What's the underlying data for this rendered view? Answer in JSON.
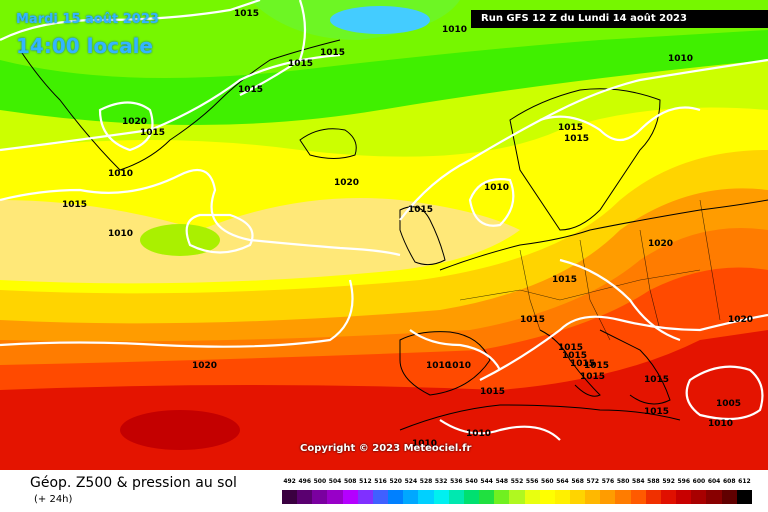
{
  "header": {
    "date_line": "Mardi 15 août 2023",
    "local_time": "14:00 locale",
    "run_info": "Run GFS 12 Z du Lundi 14 août 2023"
  },
  "copyright": "Copyright © 2023 Meteociel.fr",
  "footer": {
    "title": "Géop. Z500 & pression au sol",
    "subtitle": "(+ 24h)"
  },
  "scale": {
    "labels": [
      "492",
      "496",
      "500",
      "504",
      "508",
      "512",
      "516",
      "520",
      "524",
      "528",
      "532",
      "536",
      "540",
      "544",
      "548",
      "552",
      "556",
      "560",
      "564",
      "568",
      "572",
      "576",
      "580",
      "584",
      "588",
      "592",
      "596",
      "600",
      "604",
      "608",
      "612"
    ],
    "colors": [
      "#3a0040",
      "#5a0070",
      "#7a00a0",
      "#9800c8",
      "#b400ff",
      "#8030ff",
      "#4060ff",
      "#0080ff",
      "#00a8ff",
      "#00d0ff",
      "#00f0f0",
      "#00e8b0",
      "#00e070",
      "#20e040",
      "#70f020",
      "#b0f820",
      "#e8ff10",
      "#ffff00",
      "#fff000",
      "#ffd400",
      "#ffb800",
      "#ff9c00",
      "#ff7c00",
      "#ff5a00",
      "#f03000",
      "#e01000",
      "#c80000",
      "#a80000",
      "#880000",
      "#600000",
      "#000000"
    ]
  },
  "isobars": [
    "1015",
    "1010",
    "1015",
    "1015",
    "1015",
    "1020",
    "1015",
    "1010",
    "1015",
    "1010",
    "1020",
    "1010",
    "1015",
    "1010",
    "1015",
    "1015",
    "1015",
    "1020",
    "1015",
    "1015",
    "1020",
    "1015",
    "1015",
    "1015",
    "1010",
    "1010",
    "1015",
    "1015",
    "1015",
    "1005",
    "1010",
    "1010",
    "1010",
    "1020",
    "1015"
  ],
  "map_colors": {
    "cyan": "#00e8f0",
    "light_green": "#40f000",
    "green": "#80f800",
    "yellow_green": "#ccff00",
    "yellow": "#ffff00",
    "pale_yellow": "#ffe878",
    "gold": "#ffd400",
    "orange": "#ff9c00",
    "dark_orange": "#ff7c00",
    "red_orange": "#ff4a00",
    "red": "#e41400",
    "deep_red": "#c40000",
    "isobar": "#ffffff",
    "coast": "#000000"
  }
}
